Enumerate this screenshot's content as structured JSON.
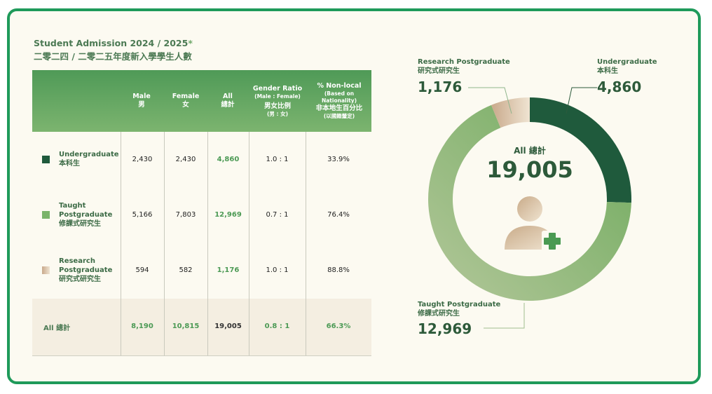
{
  "title": {
    "en": "Student Admission 2024 / 2025",
    "star": "*",
    "zh": "二零二四 / 二零二五年度新入學學生人數"
  },
  "table": {
    "headers": {
      "male": "Male\n男",
      "female": "Female\n女",
      "all": "All\n總計",
      "gender_ratio_title": "Gender Ratio",
      "gender_ratio_sub": "(Male : Female)",
      "gender_ratio_zh": "男女比例",
      "gender_ratio_zh_sub": "(男 : 女)",
      "nonlocal_title": "% Non-local",
      "nonlocal_sub": "(Based on\nNationality)",
      "nonlocal_zh": "非本地生百分比",
      "nonlocal_zh_sub": "(以國籍釐定)"
    },
    "rows": [
      {
        "label": "Undergraduate\n本科生",
        "male": "2,430",
        "female": "2,430",
        "all": "4,860",
        "ratio": "1.0 : 1",
        "nonlocal": "33.9%",
        "color": "#1f5a3c"
      },
      {
        "label": "Taught\nPostgraduate\n修課式研究生",
        "male": "5,166",
        "female": "7,803",
        "all": "12,969",
        "ratio": "0.7 : 1",
        "nonlocal": "76.4%",
        "color": "#7ab46a"
      },
      {
        "label": "Research\nPostgraduate\n研究式研究生",
        "male": "594",
        "female": "582",
        "all": "1,176",
        "ratio": "1.0 : 1",
        "nonlocal": "88.8%",
        "color": "#d9c2a6"
      }
    ],
    "total": {
      "label": "All 總計",
      "male": "8,190",
      "female": "10,815",
      "all": "19,005",
      "ratio": "0.8 : 1",
      "nonlocal": "66.3%"
    }
  },
  "donut": {
    "center_label": "All 總計",
    "center_value": "19,005",
    "callouts": {
      "research": {
        "label": "Research Postgraduate\n研究式研究生",
        "value": "1,176"
      },
      "undergrad": {
        "label": "Undergraduate\n本科生",
        "value": "4,860"
      },
      "taught": {
        "label": "Taught Postgraduate\n修課式研究生",
        "value": "12,969"
      }
    }
  },
  "colors": {
    "undergrad": "#1f5a3c",
    "taught_start": "#6eaa5c",
    "taught_end": "#b3c79a",
    "research_start": "#c9a98b",
    "research_end": "#efe4d2",
    "accent": "#1f9a5a"
  },
  "chart_data": {
    "type": "pie",
    "style": "donut",
    "title": "",
    "series": [
      {
        "name": "Undergraduate 本科生",
        "value": 4860
      },
      {
        "name": "Taught Postgraduate 修課式研究生",
        "value": 12969
      },
      {
        "name": "Research Postgraduate 研究式研究生",
        "value": 1176
      }
    ],
    "total": 19005
  }
}
